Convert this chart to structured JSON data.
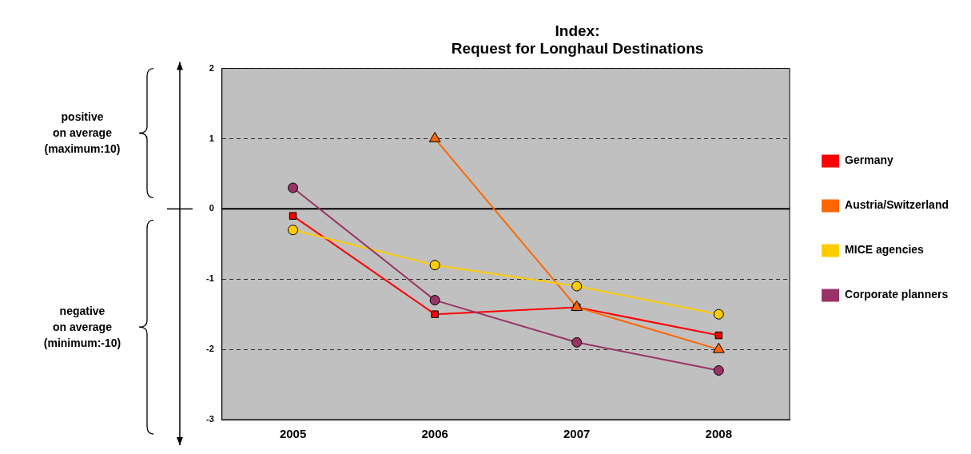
{
  "chart_data": {
    "type": "line",
    "title": "Index:\nRequest for Longhaul Destinations",
    "categories": [
      "2005",
      "2006",
      "2007",
      "2008"
    ],
    "series": [
      {
        "name": "Germany",
        "color": "#ff0000",
        "marker": "square",
        "values": [
          -0.1,
          -1.5,
          -1.4,
          -1.8
        ]
      },
      {
        "name": "Austria/Switzerland",
        "color": "#ff6600",
        "marker": "triangle",
        "values": [
          null,
          1.0,
          -1.4,
          -2.0
        ]
      },
      {
        "name": "MICE agencies",
        "color": "#ffcc00",
        "marker": "circle",
        "values": [
          -0.3,
          -0.8,
          -1.1,
          -1.5
        ]
      },
      {
        "name": "Corporate planners",
        "color": "#993366",
        "marker": "circle",
        "values": [
          0.3,
          -1.3,
          -1.9,
          -2.3
        ]
      }
    ],
    "ylim": [
      -3,
      2
    ],
    "yticks": [
      -3,
      -2,
      -1,
      0,
      1,
      2
    ],
    "grid": "y",
    "legend": "right",
    "ref_lines": [
      {
        "axis": "y",
        "value": 0,
        "color": "#000000"
      }
    ],
    "annotations": [
      "positive\non average\n(maximum:10)",
      "negative\non average\n(minimum:-10)"
    ]
  }
}
